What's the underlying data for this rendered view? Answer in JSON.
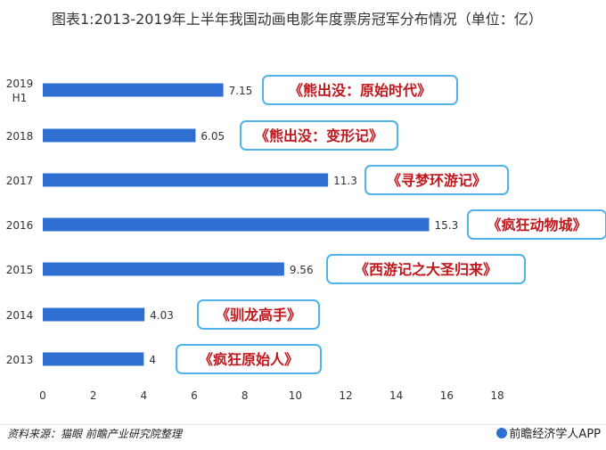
{
  "title": "图表1:2013-2019年上半年我国动画电影年度票房冠军分布情况（单位：亿）",
  "chart_data": {
    "type": "bar",
    "orientation": "horizontal",
    "categories": [
      "2019 H1",
      "2018",
      "2017",
      "2016",
      "2015",
      "2014",
      "2013"
    ],
    "values": [
      7.15,
      6.05,
      11.3,
      15.3,
      9.56,
      4.03,
      4
    ],
    "value_labels": [
      "7.15",
      "6.05",
      "11.3",
      "15.3",
      "9.56",
      "4.03",
      "4"
    ],
    "annotations": [
      "《熊出没：原始时代》",
      "《熊出没：变形记》",
      "《寻梦环游记》",
      "《疯狂动物城》",
      "《西游记之大圣归来》",
      "《驯龙高手》",
      "《疯狂原始人》"
    ],
    "xlim": [
      0,
      18
    ],
    "xticks": [
      0,
      2,
      4,
      6,
      8,
      10,
      12,
      14,
      16,
      18
    ],
    "grid": false,
    "colors": {
      "bar": "#2f6fd1",
      "box_border": "#4fb3e8",
      "box_text": "#c0171d"
    }
  },
  "footer": {
    "source": "资料来源：猫眼  前瞻产业研究院整理",
    "brand": "前瞻经济学人APP"
  }
}
